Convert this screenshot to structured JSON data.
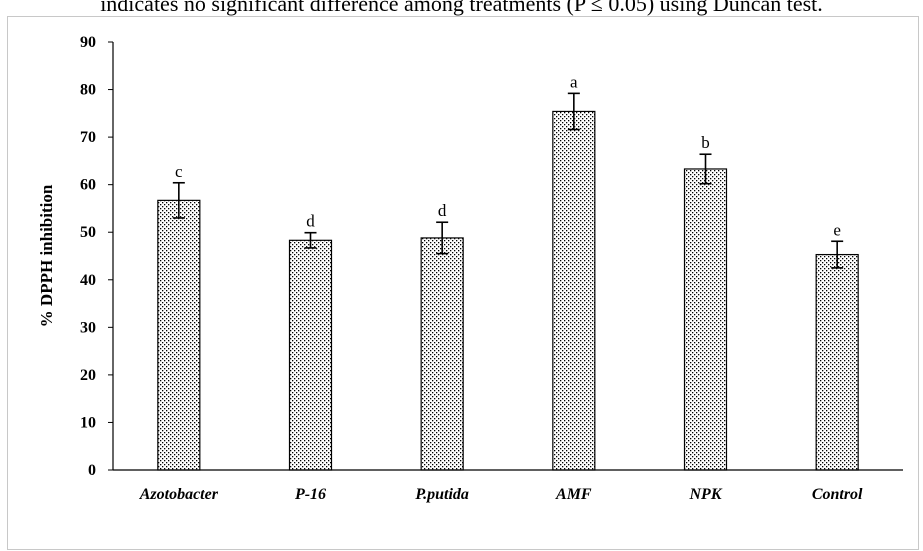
{
  "caption": "indicates no significant difference among treatments (P ≤ 0.05) using Duncan test.",
  "chart_data": {
    "type": "bar",
    "categories": [
      "Azotobacter",
      "P-16",
      "P.putida",
      "AMF",
      "NPK",
      "Control"
    ],
    "values": [
      56.7,
      48.3,
      48.8,
      75.4,
      63.3,
      45.3
    ],
    "errors": [
      3.7,
      1.6,
      3.3,
      3.8,
      3.1,
      2.8
    ],
    "significance": [
      "c",
      "d",
      "d",
      "a",
      "b",
      "e"
    ],
    "title": "",
    "xlabel": "",
    "ylabel": "% DPPH inhibition",
    "ylim": [
      0,
      90
    ],
    "yticks": [
      0,
      10,
      20,
      30,
      40,
      50,
      60,
      70,
      80,
      90
    ],
    "grid": false,
    "legend": "none",
    "bar_fill": "dotted",
    "colors": {
      "bar_border": "#000000",
      "dots": "#000000",
      "axis": "#000000"
    }
  }
}
